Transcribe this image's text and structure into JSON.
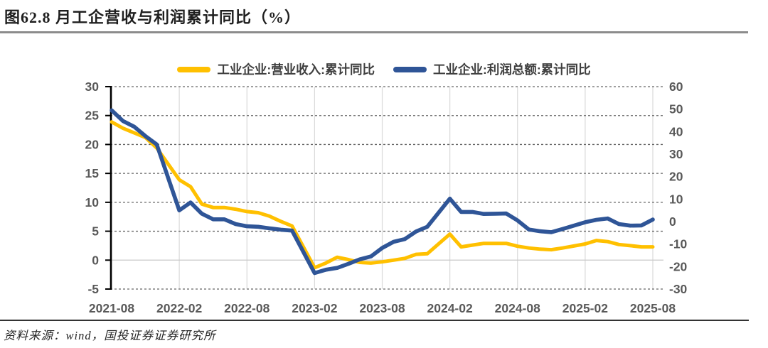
{
  "figure": {
    "title": "图62.8 月工企营收与利润累计同比（%）",
    "source": "资料来源：wind，国投证券证券研究所"
  },
  "legend": [
    {
      "label": "工业企业:营业收入:累计同比",
      "color": "#FFC000",
      "icon": "line-swatch-yellow"
    },
    {
      "label": "工业企业:利润总额:累计同比",
      "color": "#2F5597",
      "icon": "line-swatch-blue"
    }
  ],
  "chart_data": {
    "type": "line",
    "title": "8月工企营收与利润累计同比（%）",
    "grid": {
      "horizontal": "dashed",
      "vertical": "solid-light",
      "zero_line": "solid-light"
    },
    "legend_position": "top-center",
    "x_tick_labels": [
      "2021-08",
      "2022-02",
      "2022-08",
      "2023-02",
      "2023-08",
      "2024-02",
      "2024-08",
      "2025-02",
      "2025-08"
    ],
    "x_label_step_months": 6,
    "left_axis": {
      "min": -5,
      "max": 30,
      "ticks": [
        30,
        25,
        20,
        15,
        10,
        5,
        0,
        -5
      ]
    },
    "right_axis": {
      "min": -30,
      "max": 60,
      "ticks": [
        60,
        50,
        40,
        30,
        20,
        10,
        0,
        -10,
        -20,
        -30
      ]
    },
    "note": "January points omitted (Jan-Feb combined reporting); line connects Dec to Feb",
    "series": [
      {
        "name": "工业企业:营业收入:累计同比",
        "axis": "left",
        "color": "#FFC000",
        "points": [
          [
            "2021-08",
            23.9
          ],
          [
            "2021-09",
            22.8
          ],
          [
            "2021-10",
            22.0
          ],
          [
            "2021-11",
            21.2
          ],
          [
            "2021-12",
            19.4
          ],
          [
            "2022-02",
            13.9
          ],
          [
            "2022-03",
            12.7
          ],
          [
            "2022-04",
            9.7
          ],
          [
            "2022-05",
            9.1
          ],
          [
            "2022-06",
            9.1
          ],
          [
            "2022-07",
            8.8
          ],
          [
            "2022-08",
            8.4
          ],
          [
            "2022-09",
            8.2
          ],
          [
            "2022-10",
            7.6
          ],
          [
            "2022-11",
            6.7
          ],
          [
            "2022-12",
            5.9
          ],
          [
            "2023-02",
            -1.3
          ],
          [
            "2023-03",
            -0.5
          ],
          [
            "2023-04",
            0.5
          ],
          [
            "2023-05",
            0.1
          ],
          [
            "2023-06",
            -0.4
          ],
          [
            "2023-07",
            -0.5
          ],
          [
            "2023-08",
            -0.3
          ],
          [
            "2023-09",
            0.0
          ],
          [
            "2023-10",
            0.3
          ],
          [
            "2023-11",
            1.0
          ],
          [
            "2023-12",
            1.1
          ],
          [
            "2024-02",
            4.5
          ],
          [
            "2024-03",
            2.3
          ],
          [
            "2024-04",
            2.6
          ],
          [
            "2024-05",
            2.9
          ],
          [
            "2024-06",
            2.9
          ],
          [
            "2024-07",
            2.9
          ],
          [
            "2024-08",
            2.4
          ],
          [
            "2024-09",
            2.1
          ],
          [
            "2024-10",
            1.9
          ],
          [
            "2024-11",
            1.8
          ],
          [
            "2024-12",
            2.1
          ],
          [
            "2025-02",
            2.8
          ],
          [
            "2025-03",
            3.4
          ],
          [
            "2025-04",
            3.2
          ],
          [
            "2025-05",
            2.7
          ],
          [
            "2025-06",
            2.5
          ],
          [
            "2025-07",
            2.3
          ],
          [
            "2025-08",
            2.3
          ]
        ]
      },
      {
        "name": "工业企业:利润总额:累计同比",
        "axis": "right",
        "color": "#2F5597",
        "points": [
          [
            "2021-08",
            49.5
          ],
          [
            "2021-09",
            44.7
          ],
          [
            "2021-10",
            42.2
          ],
          [
            "2021-11",
            38.0
          ],
          [
            "2021-12",
            34.3
          ],
          [
            "2022-02",
            5.0
          ],
          [
            "2022-03",
            8.5
          ],
          [
            "2022-04",
            3.5
          ],
          [
            "2022-05",
            1.0
          ],
          [
            "2022-06",
            1.0
          ],
          [
            "2022-07",
            -1.1
          ],
          [
            "2022-08",
            -2.1
          ],
          [
            "2022-09",
            -2.3
          ],
          [
            "2022-10",
            -3.0
          ],
          [
            "2022-11",
            -3.6
          ],
          [
            "2022-12",
            -4.0
          ],
          [
            "2023-02",
            -22.9
          ],
          [
            "2023-03",
            -21.4
          ],
          [
            "2023-04",
            -20.6
          ],
          [
            "2023-05",
            -18.8
          ],
          [
            "2023-06",
            -16.8
          ],
          [
            "2023-07",
            -15.5
          ],
          [
            "2023-08",
            -11.7
          ],
          [
            "2023-09",
            -9.0
          ],
          [
            "2023-10",
            -7.8
          ],
          [
            "2023-11",
            -4.4
          ],
          [
            "2023-12",
            -2.3
          ],
          [
            "2024-02",
            10.2
          ],
          [
            "2024-03",
            4.3
          ],
          [
            "2024-04",
            4.3
          ],
          [
            "2024-05",
            3.4
          ],
          [
            "2024-06",
            3.5
          ],
          [
            "2024-07",
            3.6
          ],
          [
            "2024-08",
            0.5
          ],
          [
            "2024-09",
            -3.5
          ],
          [
            "2024-10",
            -4.3
          ],
          [
            "2024-11",
            -4.7
          ],
          [
            "2024-12",
            -3.3
          ],
          [
            "2025-02",
            -0.3
          ],
          [
            "2025-03",
            0.8
          ],
          [
            "2025-04",
            1.4
          ],
          [
            "2025-05",
            -1.1
          ],
          [
            "2025-06",
            -1.8
          ],
          [
            "2025-07",
            -1.7
          ],
          [
            "2025-08",
            0.9
          ]
        ]
      }
    ]
  }
}
